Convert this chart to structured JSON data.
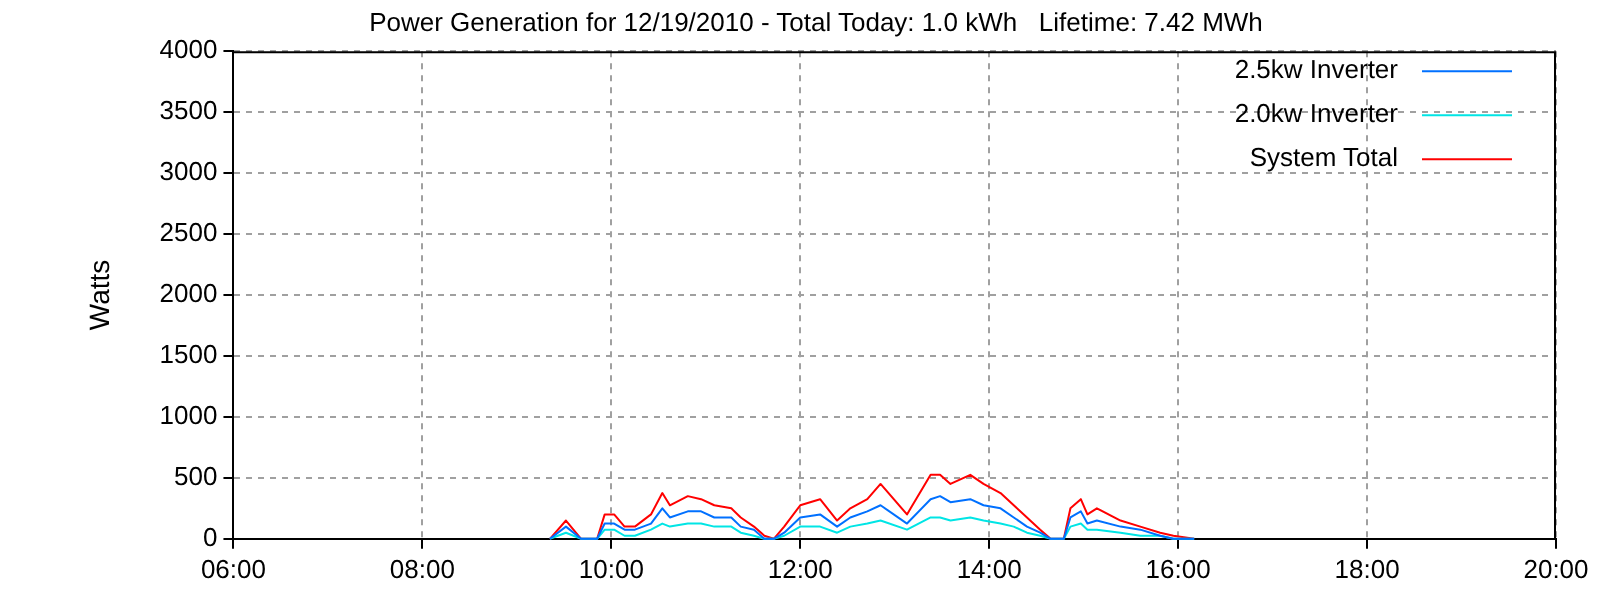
{
  "chart_data": {
    "type": "line",
    "title": "Power Generation for 12/19/2010 - Total Today: 1.0 kWh   Lifetime: 7.42 MWh",
    "ylabel": "Watts",
    "x": [
      9.35,
      9.52,
      9.68,
      9.85,
      9.93,
      10.03,
      10.14,
      10.25,
      10.42,
      10.54,
      10.62,
      10.81,
      10.95,
      11.09,
      11.27,
      11.37,
      11.51,
      11.62,
      11.72,
      11.83,
      12.0,
      12.21,
      12.39,
      12.53,
      12.71,
      12.85,
      13.13,
      13.38,
      13.48,
      13.59,
      13.8,
      13.94,
      14.12,
      14.26,
      14.4,
      14.54,
      14.65,
      14.79,
      14.86,
      14.97,
      15.04,
      15.14,
      15.39,
      15.6,
      15.81,
      15.95,
      16.17
    ],
    "series": [
      {
        "name": "2.5kw Inverter",
        "color": "#0070ff",
        "values": [
          0,
          100,
          0,
          0,
          125,
          125,
          75,
          75,
          125,
          250,
          175,
          225,
          225,
          175,
          175,
          100,
          75,
          0,
          0,
          50,
          175,
          200,
          100,
          175,
          225,
          275,
          125,
          325,
          350,
          300,
          325,
          275,
          250,
          175,
          100,
          50,
          0,
          0,
          175,
          225,
          125,
          150,
          100,
          75,
          25,
          0,
          0
        ]
      },
      {
        "name": "2.0kw Inverter",
        "color": "#00e5e5",
        "values": [
          0,
          50,
          0,
          0,
          75,
          75,
          25,
          25,
          75,
          125,
          100,
          125,
          125,
          100,
          100,
          50,
          25,
          0,
          0,
          25,
          100,
          100,
          50,
          100,
          125,
          150,
          75,
          175,
          175,
          150,
          175,
          150,
          125,
          100,
          50,
          25,
          0,
          0,
          100,
          125,
          75,
          75,
          50,
          25,
          25,
          0,
          0
        ]
      },
      {
        "name": "System Total",
        "color": "#ff0000",
        "values": [
          0,
          150,
          0,
          0,
          200,
          200,
          100,
          100,
          200,
          375,
          275,
          350,
          325,
          275,
          250,
          175,
          100,
          25,
          0,
          100,
          275,
          325,
          150,
          250,
          325,
          450,
          200,
          525,
          525,
          450,
          525,
          450,
          375,
          275,
          175,
          75,
          0,
          0,
          250,
          325,
          200,
          250,
          150,
          100,
          50,
          25,
          0
        ]
      }
    ],
    "xlim": [
      6,
      20
    ],
    "xticks": [
      {
        "value": 6,
        "label": "06:00"
      },
      {
        "value": 8,
        "label": "08:00"
      },
      {
        "value": 10,
        "label": "10:00"
      },
      {
        "value": 12,
        "label": "12:00"
      },
      {
        "value": 14,
        "label": "14:00"
      },
      {
        "value": 16,
        "label": "16:00"
      },
      {
        "value": 18,
        "label": "18:00"
      },
      {
        "value": 20,
        "label": "20:00"
      }
    ],
    "ylim": [
      0,
      4000
    ],
    "yticks": [
      0,
      500,
      1000,
      1500,
      2000,
      2500,
      3000,
      3500,
      4000
    ],
    "grid": true,
    "legend": "top right",
    "marker": "none",
    "line_style": "solid"
  }
}
